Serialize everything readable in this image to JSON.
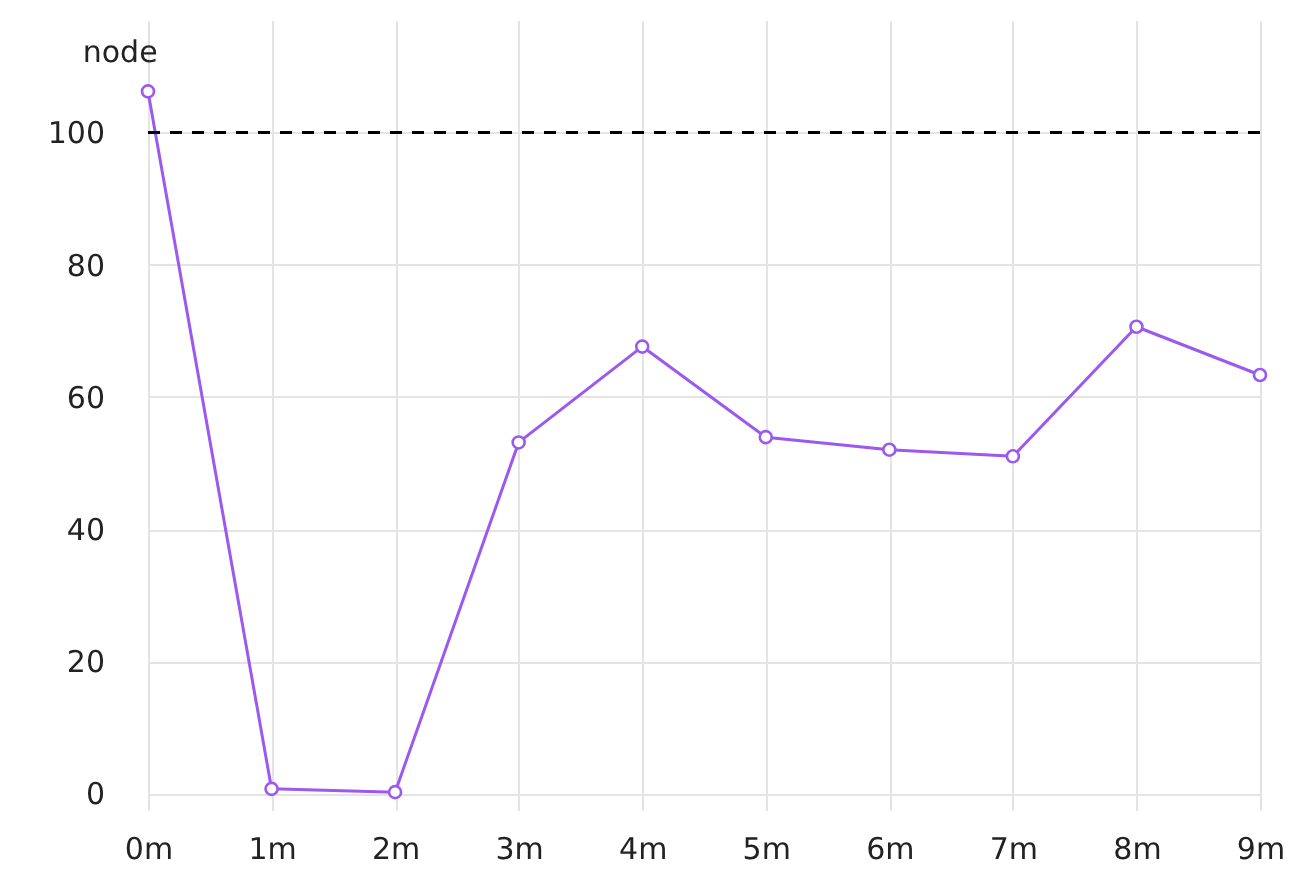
{
  "chart_data": {
    "type": "line",
    "title": "node",
    "categories": [
      "0m",
      "1m",
      "2m",
      "3m",
      "4m",
      "5m",
      "6m",
      "7m",
      "8m",
      "9m"
    ],
    "series": [
      {
        "color": "#9b59f0",
        "values": [
          106.2,
          0.7,
          0.2,
          53.1,
          67.6,
          53.9,
          52.0,
          51.0,
          70.6,
          63.3
        ]
      }
    ],
    "ylim": [
      -2.5,
      117
    ],
    "yticks": [
      0,
      20,
      40,
      60,
      80,
      100
    ],
    "grid": true,
    "marker": "circle",
    "line_style": "solid",
    "ref_lines": [
      {
        "axis": "y",
        "value": 100,
        "color": "#000000",
        "line_style": "dashed"
      }
    ]
  }
}
